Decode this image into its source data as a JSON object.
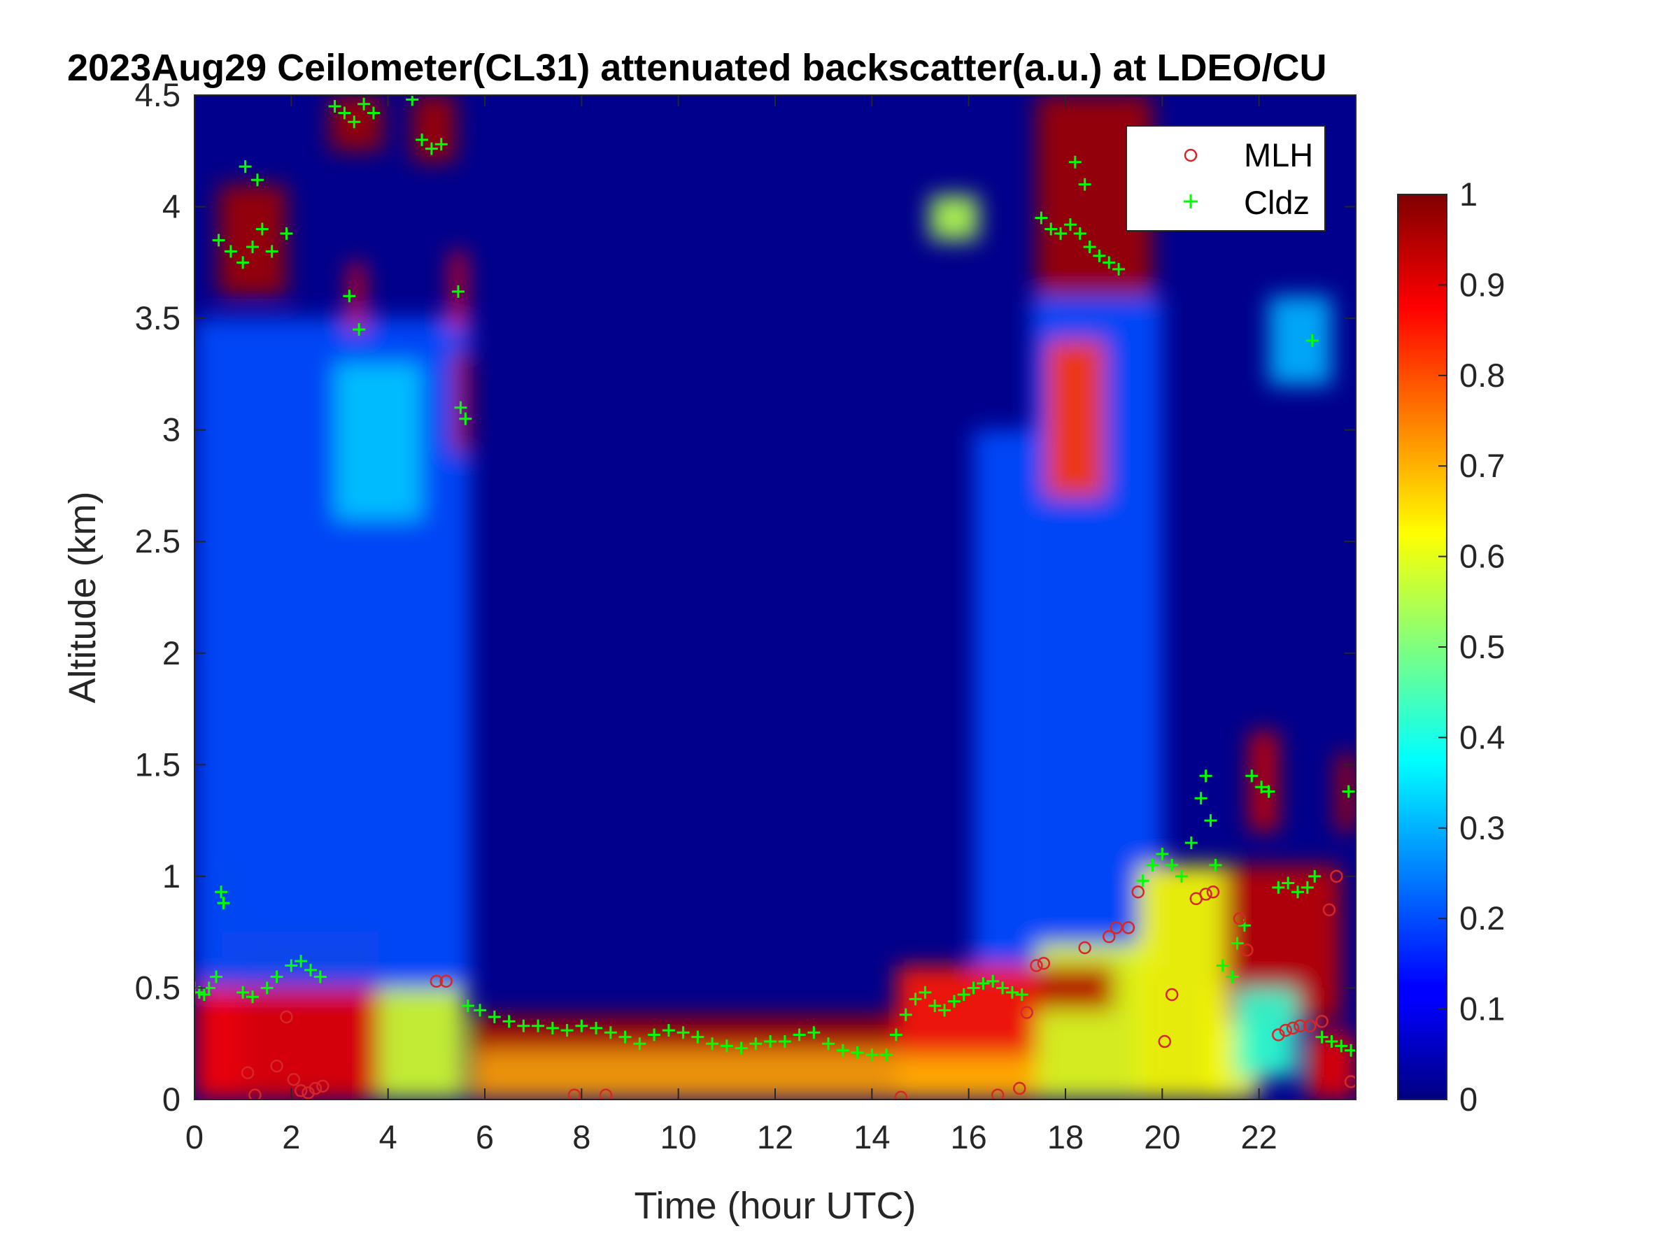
{
  "chart_data": {
    "type": "heatmap",
    "title": "2023Aug29 Ceilometer(CL31) attenuated backscatter(a.u.) at LDEO/CU",
    "xlabel": "Time (hour UTC)",
    "ylabel": "Altitude (km)",
    "xlim": [
      0,
      24
    ],
    "ylim": [
      0,
      4.5
    ],
    "x_ticks": [
      0,
      2,
      4,
      6,
      8,
      10,
      12,
      14,
      16,
      18,
      20,
      22
    ],
    "x_tick_labels": [
      "0",
      "2",
      "4",
      "6",
      "8",
      "10",
      "12",
      "14",
      "16",
      "18",
      "20",
      "22"
    ],
    "y_ticks": [
      0,
      0.5,
      1,
      1.5,
      2,
      2.5,
      3,
      3.5,
      4,
      4.5
    ],
    "y_tick_labels": [
      "0",
      "0.5",
      "1",
      "1.5",
      "2",
      "2.5",
      "3",
      "3.5",
      "4",
      "4.5"
    ],
    "colorbar": {
      "range": [
        0,
        1
      ],
      "colormap": "jet",
      "ticks": [
        0,
        0.1,
        0.2,
        0.3,
        0.4,
        0.5,
        0.6,
        0.7,
        0.8,
        0.9,
        1
      ],
      "tick_labels": [
        "0",
        "0.1",
        "0.2",
        "0.3",
        "0.4",
        "0.5",
        "0.6",
        "0.7",
        "0.8",
        "0.9",
        "1"
      ]
    },
    "legend": {
      "placement": "top-right"
    },
    "series": [
      {
        "name": "MLH",
        "marker": "circle",
        "color": "#d62728",
        "points": [
          [
            1.1,
            0.12
          ],
          [
            1.25,
            0.02
          ],
          [
            1.7,
            0.15
          ],
          [
            1.9,
            0.37
          ],
          [
            2.05,
            0.09
          ],
          [
            2.2,
            0.04
          ],
          [
            2.35,
            0.03
          ],
          [
            2.5,
            0.05
          ],
          [
            2.65,
            0.06
          ],
          [
            5.0,
            0.53
          ],
          [
            5.2,
            0.53
          ],
          [
            7.85,
            0.02
          ],
          [
            8.5,
            0.02
          ],
          [
            14.6,
            0.01
          ],
          [
            16.6,
            0.02
          ],
          [
            17.05,
            0.05
          ],
          [
            17.2,
            0.39
          ],
          [
            17.4,
            0.6
          ],
          [
            17.55,
            0.61
          ],
          [
            18.4,
            0.68
          ],
          [
            18.9,
            0.73
          ],
          [
            19.05,
            0.77
          ],
          [
            19.3,
            0.77
          ],
          [
            19.5,
            0.93
          ],
          [
            20.05,
            0.26
          ],
          [
            20.2,
            0.47
          ],
          [
            20.7,
            0.9
          ],
          [
            20.9,
            0.92
          ],
          [
            21.05,
            0.93
          ],
          [
            21.6,
            0.81
          ],
          [
            21.75,
            0.67
          ],
          [
            22.4,
            0.29
          ],
          [
            22.55,
            0.31
          ],
          [
            22.7,
            0.32
          ],
          [
            22.85,
            0.33
          ],
          [
            23.05,
            0.33
          ],
          [
            23.3,
            0.35
          ],
          [
            23.45,
            0.85
          ],
          [
            23.6,
            1.0
          ],
          [
            23.9,
            0.08
          ]
        ]
      },
      {
        "name": "Cldz",
        "marker": "plus",
        "color": "#00ff00",
        "points": [
          [
            0.0,
            0.5
          ],
          [
            0.1,
            0.48
          ],
          [
            0.2,
            0.47
          ],
          [
            0.3,
            0.5
          ],
          [
            0.45,
            0.55
          ],
          [
            0.55,
            0.93
          ],
          [
            0.6,
            0.88
          ],
          [
            1.0,
            0.48
          ],
          [
            1.2,
            0.46
          ],
          [
            1.5,
            0.5
          ],
          [
            1.7,
            0.55
          ],
          [
            2.0,
            0.6
          ],
          [
            2.2,
            0.62
          ],
          [
            2.4,
            0.58
          ],
          [
            2.6,
            0.55
          ],
          [
            0.5,
            3.85
          ],
          [
            0.75,
            3.8
          ],
          [
            1.0,
            3.75
          ],
          [
            1.2,
            3.82
          ],
          [
            1.4,
            3.9
          ],
          [
            1.6,
            3.8
          ],
          [
            1.9,
            3.88
          ],
          [
            1.05,
            4.18
          ],
          [
            1.3,
            4.12
          ],
          [
            2.9,
            4.45
          ],
          [
            3.1,
            4.42
          ],
          [
            3.3,
            4.38
          ],
          [
            3.5,
            4.46
          ],
          [
            3.7,
            4.42
          ],
          [
            4.5,
            4.48
          ],
          [
            4.7,
            4.3
          ],
          [
            4.9,
            4.26
          ],
          [
            5.1,
            4.28
          ],
          [
            3.2,
            3.6
          ],
          [
            3.4,
            3.45
          ],
          [
            5.45,
            3.62
          ],
          [
            5.5,
            3.1
          ],
          [
            5.6,
            3.05
          ],
          [
            5.65,
            0.42
          ],
          [
            5.9,
            0.4
          ],
          [
            6.2,
            0.37
          ],
          [
            6.5,
            0.35
          ],
          [
            6.8,
            0.33
          ],
          [
            7.1,
            0.33
          ],
          [
            7.4,
            0.32
          ],
          [
            7.7,
            0.31
          ],
          [
            8.0,
            0.33
          ],
          [
            8.3,
            0.32
          ],
          [
            8.6,
            0.3
          ],
          [
            8.9,
            0.28
          ],
          [
            9.2,
            0.25
          ],
          [
            9.5,
            0.29
          ],
          [
            9.8,
            0.31
          ],
          [
            10.1,
            0.3
          ],
          [
            10.4,
            0.28
          ],
          [
            10.7,
            0.25
          ],
          [
            11.0,
            0.24
          ],
          [
            11.3,
            0.23
          ],
          [
            11.6,
            0.25
          ],
          [
            11.9,
            0.26
          ],
          [
            12.2,
            0.26
          ],
          [
            12.5,
            0.29
          ],
          [
            12.8,
            0.3
          ],
          [
            13.1,
            0.25
          ],
          [
            13.4,
            0.22
          ],
          [
            13.7,
            0.21
          ],
          [
            14.0,
            0.2
          ],
          [
            14.3,
            0.2
          ],
          [
            14.5,
            0.29
          ],
          [
            14.7,
            0.38
          ],
          [
            14.9,
            0.45
          ],
          [
            15.1,
            0.48
          ],
          [
            15.3,
            0.42
          ],
          [
            15.5,
            0.4
          ],
          [
            15.7,
            0.44
          ],
          [
            15.9,
            0.47
          ],
          [
            16.1,
            0.5
          ],
          [
            16.3,
            0.52
          ],
          [
            16.5,
            0.53
          ],
          [
            16.7,
            0.5
          ],
          [
            16.9,
            0.48
          ],
          [
            17.1,
            0.47
          ],
          [
            17.5,
            3.95
          ],
          [
            17.7,
            3.9
          ],
          [
            17.9,
            3.88
          ],
          [
            18.1,
            3.92
          ],
          [
            18.3,
            3.88
          ],
          [
            18.5,
            3.82
          ],
          [
            18.7,
            3.78
          ],
          [
            18.9,
            3.75
          ],
          [
            19.1,
            3.72
          ],
          [
            18.2,
            4.2
          ],
          [
            18.4,
            4.1
          ],
          [
            19.6,
            0.98
          ],
          [
            19.8,
            1.05
          ],
          [
            20.0,
            1.1
          ],
          [
            20.2,
            1.05
          ],
          [
            20.4,
            1.0
          ],
          [
            20.6,
            1.15
          ],
          [
            20.8,
            1.35
          ],
          [
            20.9,
            1.45
          ],
          [
            21.0,
            1.25
          ],
          [
            21.1,
            1.05
          ],
          [
            21.25,
            0.6
          ],
          [
            21.45,
            0.55
          ],
          [
            21.55,
            0.7
          ],
          [
            21.7,
            0.78
          ],
          [
            21.85,
            1.45
          ],
          [
            22.05,
            1.4
          ],
          [
            22.2,
            1.38
          ],
          [
            22.4,
            0.95
          ],
          [
            22.6,
            0.97
          ],
          [
            22.8,
            0.93
          ],
          [
            23.0,
            0.95
          ],
          [
            23.15,
            1.0
          ],
          [
            23.1,
            3.4
          ],
          [
            23.3,
            0.28
          ],
          [
            23.5,
            0.26
          ],
          [
            23.7,
            0.24
          ],
          [
            23.9,
            0.22
          ],
          [
            23.85,
            1.38
          ]
        ]
      }
    ],
    "heatmap_features": [
      {
        "t0": 0.0,
        "t1": 1.0,
        "z0": 0.0,
        "z1": 0.6,
        "value": 0.88
      },
      {
        "t0": 0.5,
        "t1": 0.8,
        "z0": 0.5,
        "z1": 1.05,
        "value": 0.95
      },
      {
        "t0": 1.0,
        "t1": 3.8,
        "z0": 0.0,
        "z1": 0.75,
        "value": 0.9
      },
      {
        "t0": 3.8,
        "t1": 5.6,
        "z0": 0.0,
        "z1": 0.5,
        "value": 0.58
      },
      {
        "t0": 0.0,
        "t1": 5.7,
        "z0": 0.5,
        "z1": 3.5,
        "value": 0.2
      },
      {
        "t0": 2.9,
        "t1": 4.7,
        "z0": 2.6,
        "z1": 3.3,
        "value": 0.32
      },
      {
        "t0": 0.5,
        "t1": 1.9,
        "z0": 3.6,
        "z1": 4.1,
        "value": 0.97
      },
      {
        "t0": 2.8,
        "t1": 3.9,
        "z0": 4.25,
        "z1": 4.5,
        "value": 0.97
      },
      {
        "t0": 4.5,
        "t1": 5.4,
        "z0": 4.2,
        "z1": 4.5,
        "value": 0.97
      },
      {
        "t0": 3.2,
        "t1": 3.5,
        "z0": 3.45,
        "z1": 3.75,
        "value": 0.88
      },
      {
        "t0": 5.3,
        "t1": 5.6,
        "z0": 3.45,
        "z1": 3.8,
        "value": 0.88
      },
      {
        "t0": 5.35,
        "t1": 5.7,
        "z0": 2.9,
        "z1": 3.35,
        "value": 0.95
      },
      {
        "t0": 5.7,
        "t1": 14.5,
        "z0": 0.0,
        "z1": 0.3,
        "value": 0.72
      },
      {
        "t0": 5.7,
        "t1": 14.5,
        "z0": 0.22,
        "z1": 0.38,
        "value": 0.97
      },
      {
        "t0": 14.5,
        "t1": 17.4,
        "z0": 0.0,
        "z1": 0.6,
        "value": 0.85
      },
      {
        "t0": 14.5,
        "t1": 17.4,
        "z0": 0.0,
        "z1": 0.2,
        "value": 0.7
      },
      {
        "t0": 15.2,
        "t1": 16.2,
        "z0": 3.85,
        "z1": 4.05,
        "value": 0.55
      },
      {
        "t0": 16.1,
        "t1": 17.4,
        "z0": 0.6,
        "z1": 3.0,
        "value": 0.2
      },
      {
        "t0": 17.3,
        "t1": 20.0,
        "z0": 0.6,
        "z1": 3.6,
        "value": 0.2
      },
      {
        "t0": 17.4,
        "t1": 19.6,
        "z0": 0.0,
        "z1": 0.7,
        "value": 0.6
      },
      {
        "t0": 17.4,
        "t1": 19.0,
        "z0": 0.4,
        "z1": 0.6,
        "value": 0.95
      },
      {
        "t0": 17.6,
        "t1": 18.8,
        "z0": 2.7,
        "z1": 3.4,
        "value": 0.82
      },
      {
        "t0": 17.4,
        "t1": 19.8,
        "z0": 3.6,
        "z1": 4.5,
        "value": 0.97
      },
      {
        "t0": 19.5,
        "t1": 21.3,
        "z0": 0.0,
        "z1": 1.05,
        "value": 0.62
      },
      {
        "t0": 21.0,
        "t1": 22.0,
        "z0": 0.0,
        "z1": 0.5,
        "value": 0.62
      },
      {
        "t0": 21.3,
        "t1": 23.7,
        "z0": 0.35,
        "z1": 1.05,
        "value": 0.94
      },
      {
        "t0": 21.8,
        "t1": 22.4,
        "z0": 1.2,
        "z1": 1.65,
        "value": 0.93
      },
      {
        "t0": 21.5,
        "t1": 22.8,
        "z0": 0.1,
        "z1": 0.5,
        "value": 0.42
      },
      {
        "t0": 22.2,
        "t1": 23.5,
        "z0": 3.2,
        "z1": 3.6,
        "value": 0.3
      },
      {
        "t0": 23.6,
        "t1": 24.0,
        "z0": 1.2,
        "z1": 1.55,
        "value": 0.95
      },
      {
        "t0": 23.0,
        "t1": 24.0,
        "z0": 0.0,
        "z1": 0.3,
        "value": 0.9
      }
    ]
  }
}
